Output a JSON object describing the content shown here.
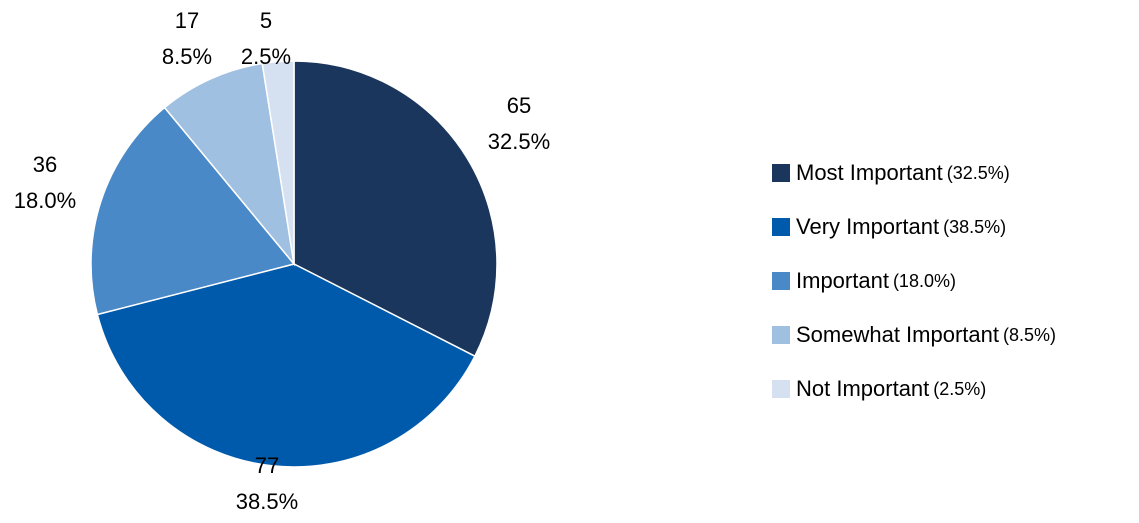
{
  "chart_data": {
    "type": "pie",
    "categories": [
      "Most Important",
      "Very Important",
      "Important",
      "Somewhat Important",
      "Not Important"
    ],
    "values": [
      65,
      77,
      36,
      17,
      5
    ],
    "percent_labels": [
      "32.5%",
      "38.5%",
      "18.0%",
      "8.5%",
      "2.5%"
    ],
    "legend_percent_labels": [
      "(32.5%)",
      "(38.5%)",
      "(18.0%)",
      "(8.5%)",
      "(2.5%)"
    ],
    "colors": [
      "#1b365d",
      "#005aab",
      "#4a89c7",
      "#a0c0e2",
      "#d5e0f1"
    ],
    "start_angle_deg": 0,
    "direction": "clockwise",
    "legend_position": "right"
  }
}
